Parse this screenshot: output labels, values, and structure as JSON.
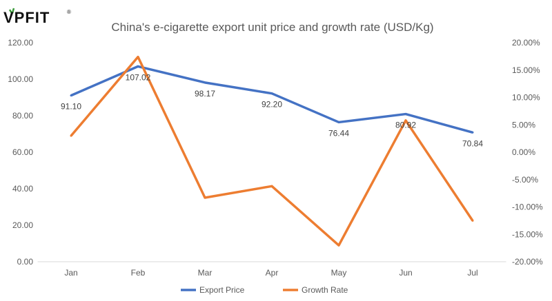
{
  "logo": {
    "text": "VPFIT",
    "mark": "®"
  },
  "chart_data": {
    "type": "line",
    "title": "China's e-cigarette export unit price and growth rate (USD/Kg)",
    "categories": [
      "Jan",
      "Feb",
      "Mar",
      "Apr",
      "May",
      "Jun",
      "Jul"
    ],
    "series": [
      {
        "name": "Export Price",
        "axis": "left",
        "color": "#4472C4",
        "values": [
          91.1,
          107.02,
          98.17,
          92.2,
          76.44,
          80.92,
          70.84
        ],
        "labels": [
          "91.10",
          "107.02",
          "98.17",
          "92.20",
          "76.44",
          "80.92",
          "70.84"
        ]
      },
      {
        "name": "Growth Rate",
        "axis": "right",
        "color": "#ED7D31",
        "values": [
          3.0,
          17.4,
          -8.3,
          -6.2,
          -17.0,
          5.8,
          -12.5
        ]
      }
    ],
    "left_axis": {
      "min": 0,
      "max": 120,
      "step": 20,
      "ticks": [
        "0.00",
        "20.00",
        "40.00",
        "60.00",
        "80.00",
        "100.00",
        "120.00"
      ]
    },
    "right_axis": {
      "min": -20,
      "max": 20,
      "step": 5,
      "unit": "%",
      "ticks": [
        "-20.00%",
        "-15.00%",
        "-10.00%",
        "-5.00%",
        "0.00%",
        "5.00%",
        "10.00%",
        "15.00%",
        "20.00%"
      ]
    },
    "grid": false,
    "legend": "bottom"
  }
}
